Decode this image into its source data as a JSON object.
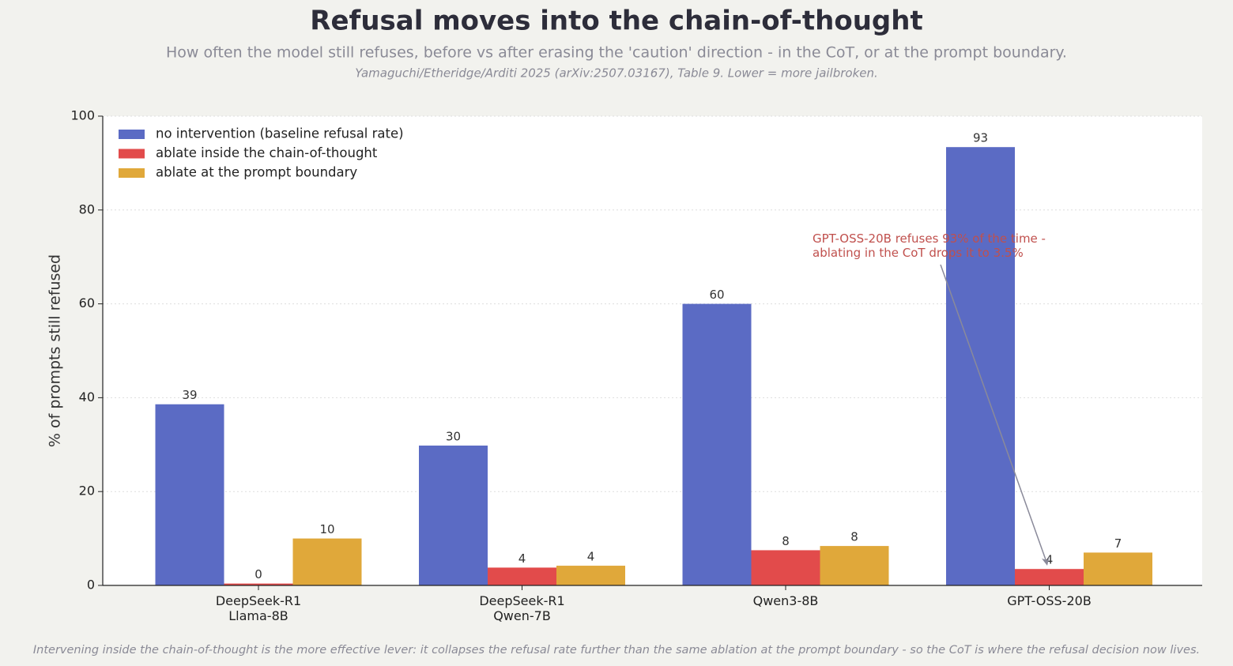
{
  "chart_data": {
    "type": "bar",
    "title": "Refusal moves into the chain-of-thought",
    "subtitle": "How often the model still refuses, before vs after erasing the 'caution' direction - in the CoT, or at the prompt boundary.",
    "source": "Yamaguchi/Etheridge/Arditi 2025 (arXiv:2507.03167), Table 9. Lower = more jailbroken.",
    "footnote": "Intervening inside the chain-of-thought is the more effective lever: it collapses the refusal rate further than the same ablation at the prompt boundary - so the CoT is where the refusal decision now lives.",
    "ylabel": "% of prompts still refused",
    "categories": [
      "DeepSeek-R1\nLlama-8B",
      "DeepSeek-R1\nQwen-7B",
      "Qwen3-8B",
      "GPT-OSS-20B"
    ],
    "series": [
      {
        "name": "no intervention (baseline refusal rate)",
        "color": "#5b6bc4",
        "values": [
          38.6,
          29.8,
          60.0,
          93.4
        ],
        "value_labels": [
          "39",
          "30",
          "60",
          "93"
        ]
      },
      {
        "name": "ablate inside the chain-of-thought",
        "color": "#e24b4b",
        "values": [
          0.4,
          3.8,
          7.5,
          3.5
        ],
        "value_labels": [
          "0",
          "4",
          "8",
          "4"
        ]
      },
      {
        "name": "ablate at the prompt boundary",
        "color": "#e0a83a",
        "values": [
          10.0,
          4.2,
          8.4,
          7.0
        ],
        "value_labels": [
          "10",
          "4",
          "8",
          "7"
        ]
      }
    ],
    "ylim": [
      0,
      100
    ],
    "yticks": [
      0,
      20,
      40,
      60,
      80,
      100
    ],
    "grid": true,
    "legend": "upper left",
    "annotation": "GPT-OSS-20B refuses 93% of the time -\nablating in the CoT drops it to 3.5%"
  }
}
